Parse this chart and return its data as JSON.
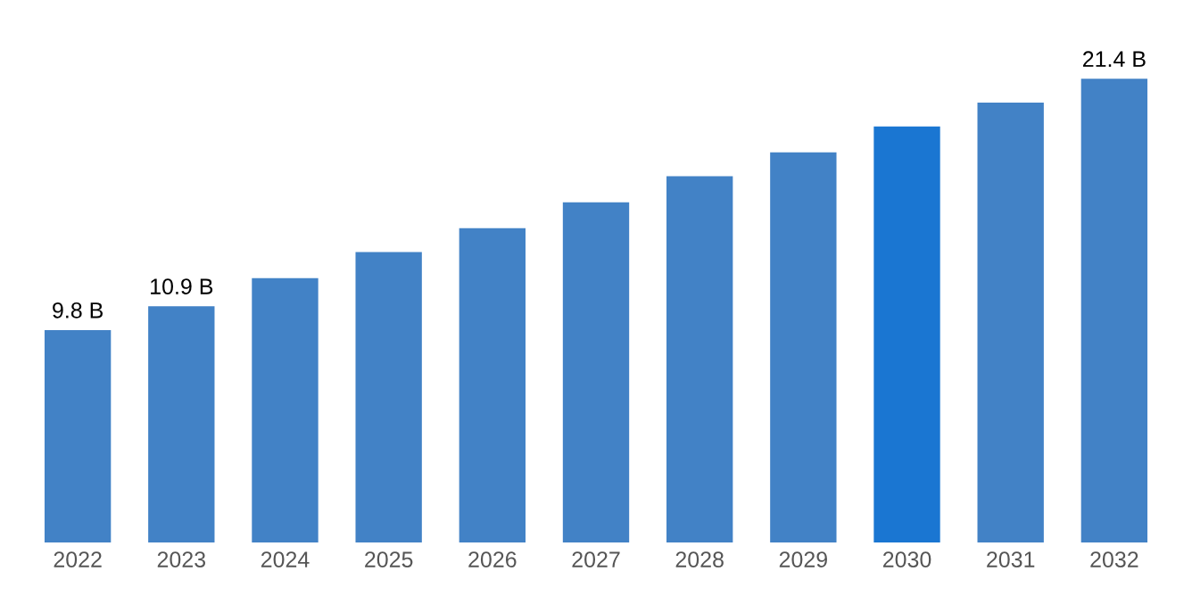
{
  "chart_data": {
    "type": "bar",
    "categories": [
      "2022",
      "2023",
      "2024",
      "2025",
      "2026",
      "2027",
      "2028",
      "2029",
      "2030",
      "2031",
      "2032"
    ],
    "values": [
      9.8,
      10.9,
      12.2,
      13.4,
      14.5,
      15.7,
      16.9,
      18.0,
      19.2,
      20.3,
      21.4
    ],
    "colors": [
      "#4282c6",
      "#4282c6",
      "#4282c6",
      "#4282c6",
      "#4282c6",
      "#4282c6",
      "#4282c6",
      "#4282c6",
      "#1a76d2",
      "#4282c6",
      "#4282c6"
    ],
    "value_labels": [
      "9.8 B",
      "10.9 B",
      null,
      null,
      null,
      null,
      null,
      null,
      null,
      null,
      "21.4 B"
    ],
    "tick_labels": "x",
    "grid": false,
    "legend": false
  }
}
